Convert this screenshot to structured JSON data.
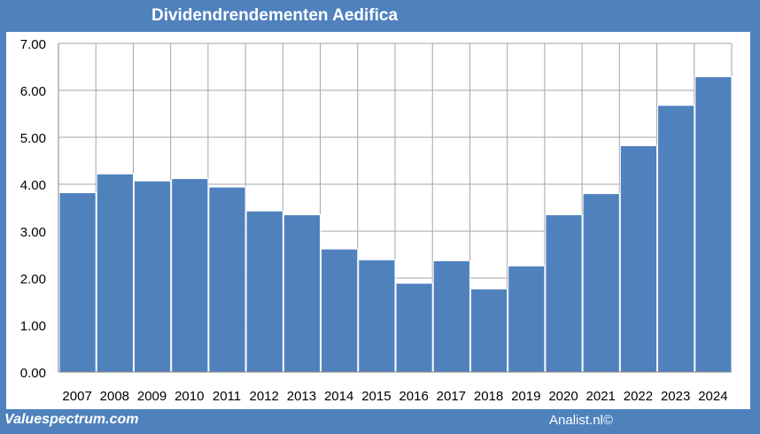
{
  "header": {
    "title": "Dividendrendementen Aedifica"
  },
  "footer": {
    "left": "Valuespectrum.com",
    "right": "Analist.nl©"
  },
  "colors": {
    "frame": "#4f81bd",
    "bar": "#4f81bd",
    "bar_edge": "#ffffff",
    "grid": "#a6a6a6"
  },
  "chart_data": {
    "type": "bar",
    "title": "Dividendrendementen Aedifica",
    "xlabel": "",
    "ylabel": "",
    "categories": [
      "2007",
      "2008",
      "2009",
      "2010",
      "2011",
      "2012",
      "2013",
      "2014",
      "2015",
      "2016",
      "2017",
      "2018",
      "2019",
      "2020",
      "2021",
      "2022",
      "2023",
      "2024"
    ],
    "values": [
      3.82,
      4.22,
      4.07,
      4.12,
      3.94,
      3.43,
      3.35,
      2.62,
      2.39,
      1.89,
      2.37,
      1.77,
      2.26,
      3.35,
      3.8,
      4.82,
      5.68,
      6.29
    ],
    "yticks": [
      "0.00",
      "1.00",
      "2.00",
      "3.00",
      "4.00",
      "5.00",
      "6.00",
      "7.00"
    ],
    "ylim": [
      0,
      7
    ],
    "grid": true,
    "legend": "none"
  }
}
